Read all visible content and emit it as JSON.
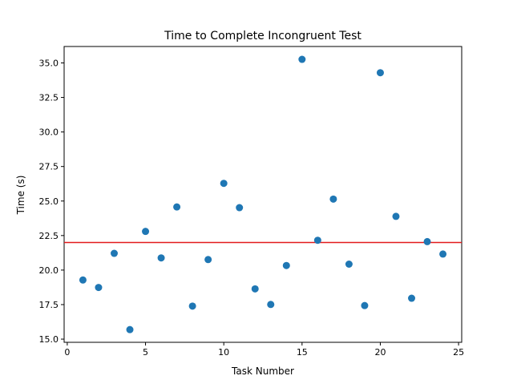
{
  "chart_data": {
    "type": "scatter",
    "title": "Time to Complete Incongruent Test",
    "xlabel": "Task Number",
    "ylabel": "Time (s)",
    "xlim": [
      -0.2,
      25.2
    ],
    "ylim": [
      14.77,
      36.19
    ],
    "x_ticks": [
      0,
      5,
      10,
      15,
      20,
      25
    ],
    "x_tick_labels": [
      "0",
      "5",
      "10",
      "15",
      "20",
      "25"
    ],
    "y_ticks": [
      15.0,
      17.5,
      20.0,
      22.5,
      25.0,
      27.5,
      30.0,
      32.5,
      35.0
    ],
    "y_tick_labels": [
      "15.0",
      "17.5",
      "20.0",
      "22.5",
      "25.0",
      "27.5",
      "30.0",
      "32.5",
      "35.0"
    ],
    "grid": false,
    "series": [
      {
        "type": "scatter",
        "color": "#1f77b4",
        "x": [
          1,
          2,
          3,
          4,
          5,
          6,
          7,
          8,
          9,
          10,
          11,
          12,
          13,
          14,
          15,
          16,
          17,
          18,
          19,
          20,
          21,
          22,
          23,
          24
        ],
        "y": [
          19.28,
          18.74,
          21.21,
          15.69,
          22.8,
          20.88,
          24.57,
          17.39,
          20.76,
          26.28,
          24.52,
          18.64,
          17.51,
          20.33,
          35.26,
          22.16,
          25.14,
          20.43,
          17.43,
          34.29,
          23.89,
          17.96,
          22.06,
          21.16
        ]
      }
    ],
    "reference_lines": [
      {
        "orientation": "horizontal",
        "y": 22.0,
        "color": "#e31a1c"
      }
    ]
  }
}
